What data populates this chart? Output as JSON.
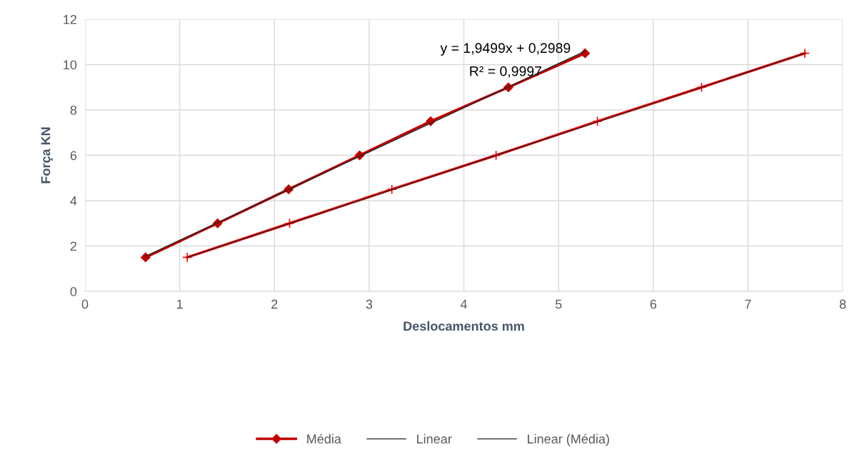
{
  "chart_data": {
    "type": "line",
    "xlabel": "Deslocamentos mm",
    "ylabel": "Força KN",
    "series": [
      {
        "color": "#ff0000",
        "marker": "cross",
        "x": [
          1.08,
          2.16,
          3.24,
          4.34,
          5.41,
          6.51,
          7.6
        ],
        "values": [
          1.5,
          3,
          4.5,
          6,
          7.5,
          9,
          10.5
        ]
      },
      {
        "name": "Média",
        "color": "#c00000",
        "marker": "diamond",
        "x": [
          0.64,
          1.4,
          2.15,
          2.9,
          3.65,
          4.47,
          5.28
        ],
        "values": [
          1.5,
          3,
          4.5,
          6,
          7.5,
          9,
          10.5
        ]
      },
      {
        "name": "Linear",
        "color": "#262626",
        "marker": "none",
        "x": [
          1.08,
          7.6
        ],
        "values": [
          1.5,
          10.5
        ]
      },
      {
        "name": "Linear (Média)",
        "color": "#262626",
        "marker": "none",
        "x": [
          0.64,
          5.28
        ],
        "values": [
          1.547,
          10.594
        ]
      }
    ],
    "annotations": [
      "y = 1,9499x + 0,2989",
      "R² = 0,9997"
    ],
    "xlim": [
      0,
      8
    ],
    "xticks": [
      0,
      1,
      2,
      3,
      4,
      5,
      6,
      7,
      8
    ],
    "ylim": [
      0,
      12
    ],
    "yticks": [
      0,
      2,
      4,
      6,
      8,
      10,
      12
    ],
    "grid": true,
    "legend": "bottom"
  }
}
